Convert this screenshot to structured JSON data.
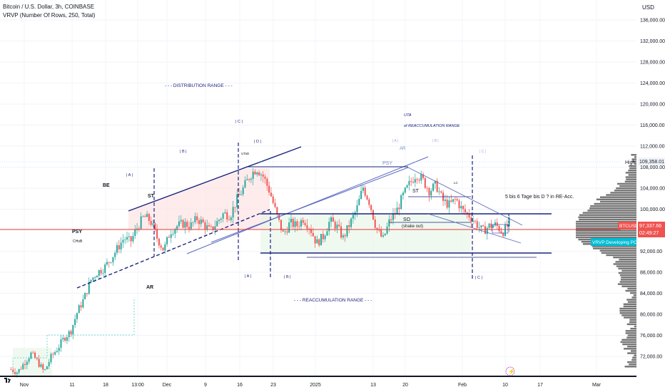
{
  "header": {
    "symbol_line": "Bitcoin / U.S. Dollar, 3h, COINBASE",
    "indicator_line": "VRVP (Number Of Rows, 250, Total)",
    "currency": "USD"
  },
  "colors": {
    "up": "#26a69a",
    "down": "#ef5350",
    "channel": "#1a237e",
    "fan": "#5c6bc0",
    "price_line": "#e53935",
    "profile": "#5d5d5d",
    "poc_bg": "#00bcd4",
    "price_tag": "#ef5350",
    "annotation": "#1a237e",
    "distribution_fill": "#fde0e0",
    "reacc_fill": "#e6f5e6"
  },
  "price_scale": {
    "ticks": [
      "136,000.00",
      "132,000.00",
      "128,000.00",
      "124,000.00",
      "120,000.00",
      "116,000.00",
      "112,000.00",
      "108,000.00",
      "104,000.00",
      "100,000.00",
      "92,000.00",
      "88,000.00",
      "84,000.00",
      "80,000.00",
      "76,000.00",
      "72,000.00"
    ],
    "high_label": "High",
    "high_value": "109,358.01",
    "price_label": "BTCUSD",
    "price_value": "97,337.66",
    "countdown": "02:49:27",
    "poc_label": "VRVP:Developing POC"
  },
  "time_axis": {
    "labels": [
      "Nov",
      "11",
      "18",
      "13:00",
      "Dec",
      "9",
      "16",
      "23",
      "2025",
      "13",
      "20",
      "Feb",
      "10",
      "17",
      "Mar"
    ]
  },
  "annotations": {
    "distribution_range": "- - - DISTRIBUTION RANGE - - -",
    "reacc_range": "- - - REACCUMULATION RANGE - - -",
    "uta": "UTA",
    "uta_sub": "of REACCUMULATION RANGE",
    "note": "5 bis 6 Tage bis D ? in RE-Acc.",
    "psy": "PSY",
    "choch": "CHoB",
    "be": "BE",
    "st": "ST",
    "ar": "AR",
    "utad": "UTaD",
    "a": "| A |",
    "b": "| B |",
    "c": "| C |",
    "d": "| D |",
    "psy2": "PSY",
    "ar2": "AR",
    "st2": "ST",
    "so": "SO",
    "shake_out": "(shake out)",
    "a2": "| A |",
    "b2": "| B |",
    "c2": "| C |",
    "a3": "| A |",
    "b3": "| B |",
    "c3": "| C |",
    "lc": "LC"
  },
  "chart_data": {
    "type": "candlestick",
    "symbol": "Bitcoin / U.S. Dollar",
    "interval": "3h",
    "exchange": "COINBASE",
    "ylim": [
      70000,
      138000
    ],
    "x": [
      "Nov",
      "11",
      "18",
      "13:00",
      "Dec",
      "9",
      "16",
      "23",
      "2025",
      "13",
      "20",
      "Feb",
      "10",
      "17",
      "Mar"
    ],
    "close_path": [
      69500,
      69000,
      70800,
      72500,
      71000,
      69000,
      71800,
      73500,
      75500,
      76800,
      80500,
      83000,
      86500,
      88000,
      88800,
      90500,
      92500,
      94500,
      93800,
      96500,
      98600,
      97800,
      94500,
      92200,
      95800,
      96800,
      97300,
      96800,
      98200,
      97200,
      95800,
      97500,
      99200,
      98800,
      101800,
      104000,
      106500,
      107800,
      106200,
      103200,
      98800,
      95200,
      97400,
      96800,
      98200,
      96500,
      93500,
      94800,
      97800,
      96800,
      94500,
      97200,
      99800,
      104200,
      101200,
      96300,
      94200,
      97800,
      99500,
      102500,
      104800,
      106800,
      105500,
      103500,
      104600,
      101600,
      100800,
      101900,
      99700,
      98800,
      97300,
      95800,
      96800,
      97000,
      95600,
      97400
    ],
    "last_price": 97337.66,
    "period_high": 109358.01,
    "volume_profile": "VRVP (Number Of Rows, 250, Total)"
  }
}
